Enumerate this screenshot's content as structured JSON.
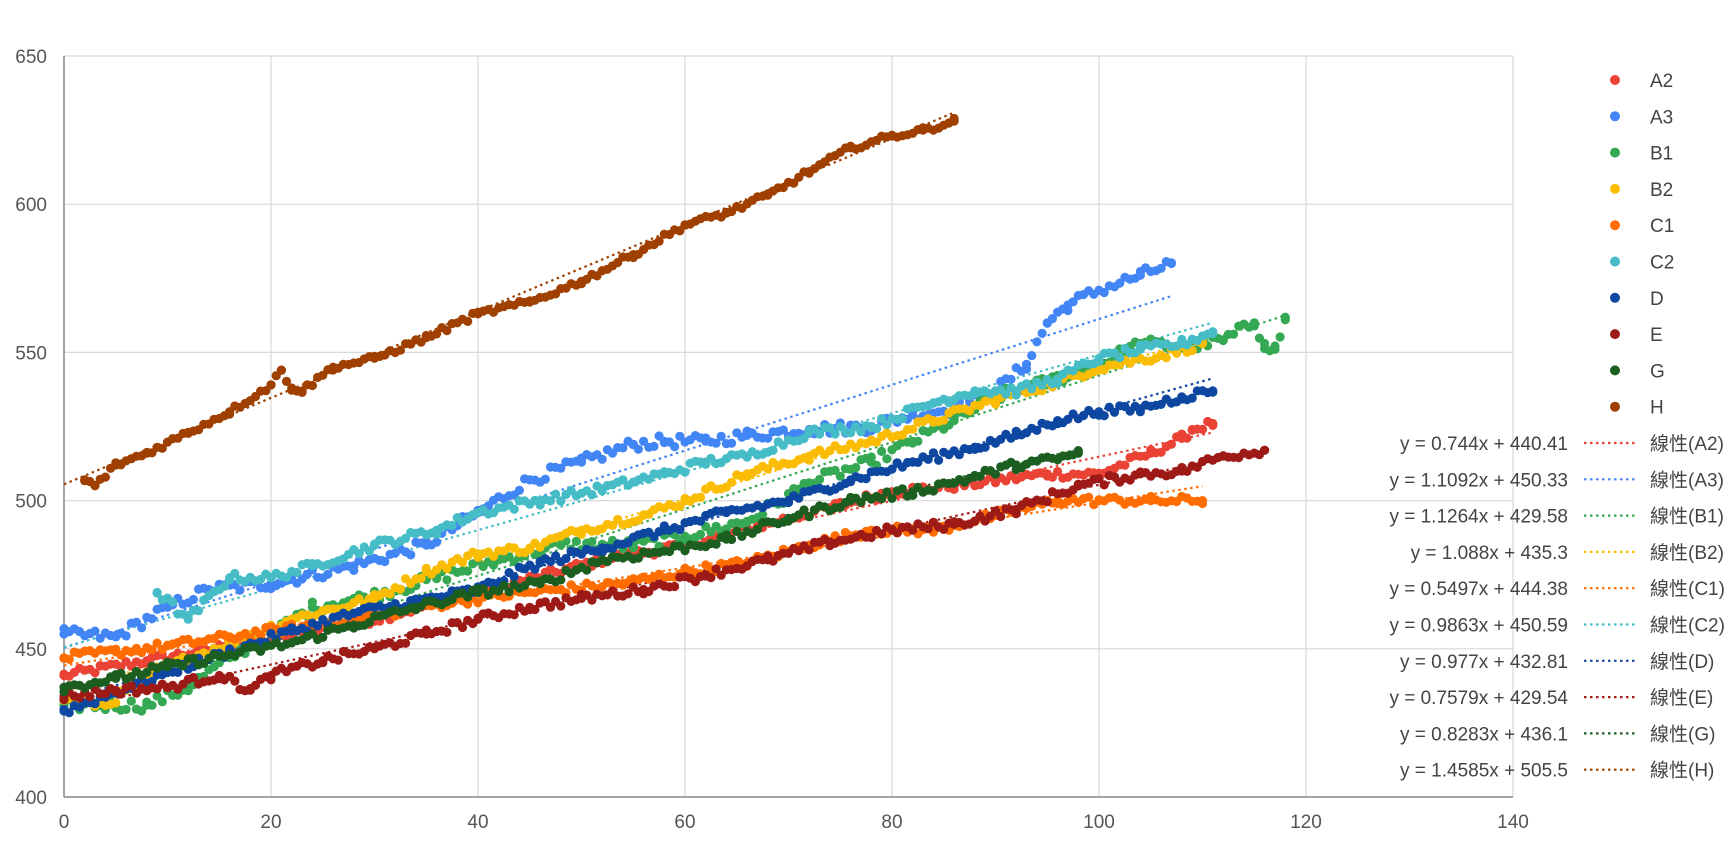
{
  "chart_data": {
    "type": "scatter",
    "title": "",
    "xlabel": "",
    "ylabel": "",
    "xlim": [
      0,
      140
    ],
    "ylim": [
      400,
      650
    ],
    "xticks": [
      0,
      20,
      40,
      60,
      80,
      100,
      120,
      140
    ],
    "yticks": [
      400,
      450,
      500,
      550,
      600,
      650
    ],
    "grid": true,
    "legend_position": "right",
    "series": [
      {
        "name": "A2",
        "color": "#EA4335",
        "x_max": 111,
        "slope": 0.744,
        "intercept": 440.41,
        "spread": 3,
        "trend_label": "線性(A2)",
        "equation": "y = 0.744x + 440.41",
        "points": [
          [
            0,
            441
          ],
          [
            8,
            446
          ],
          [
            18,
            452
          ],
          [
            30,
            460
          ],
          [
            40,
            469
          ],
          [
            52,
            480
          ],
          [
            60,
            485
          ],
          [
            70,
            494
          ],
          [
            80,
            503
          ],
          [
            86,
            505
          ],
          [
            95,
            509
          ],
          [
            100,
            509
          ],
          [
            105,
            516
          ],
          [
            108,
            521
          ],
          [
            109,
            524
          ],
          [
            111,
            526
          ]
        ]
      },
      {
        "name": "A3",
        "color": "#4285F4",
        "x_max": 107,
        "slope": 1.1092,
        "intercept": 450.33,
        "spread": 4,
        "trend_label": "線性(A3)",
        "equation": "y = 1.1092x + 450.33",
        "points": [
          [
            0,
            455
          ],
          [
            5,
            454
          ],
          [
            10,
            464
          ],
          [
            14,
            470
          ],
          [
            20,
            472
          ],
          [
            28,
            478
          ],
          [
            35,
            485
          ],
          [
            40,
            496
          ],
          [
            45,
            507
          ],
          [
            50,
            513
          ],
          [
            55,
            519
          ],
          [
            58,
            520
          ],
          [
            62,
            520
          ],
          [
            66,
            522
          ],
          [
            72,
            524
          ],
          [
            78,
            525
          ],
          [
            82,
            529
          ],
          [
            86,
            531
          ],
          [
            90,
            537
          ],
          [
            93,
            546
          ],
          [
            95,
            560
          ],
          [
            97,
            566
          ],
          [
            100,
            571
          ],
          [
            104,
            576
          ],
          [
            107,
            580
          ]
        ]
      },
      {
        "name": "B1",
        "color": "#34A853",
        "x_max": 118,
        "slope": 1.1264,
        "intercept": 429.58,
        "spread": 4,
        "trend_label": "線性(B1)",
        "equation": "y = 1.1264x + 429.58",
        "points": [
          [
            0,
            431
          ],
          [
            4,
            431
          ],
          [
            8,
            431
          ],
          [
            12,
            437
          ],
          [
            16,
            447
          ],
          [
            20,
            455
          ],
          [
            24,
            464
          ],
          [
            30,
            468
          ],
          [
            36,
            474
          ],
          [
            42,
            480
          ],
          [
            48,
            485
          ],
          [
            55,
            485
          ],
          [
            60,
            488
          ],
          [
            66,
            493
          ],
          [
            72,
            506
          ],
          [
            78,
            513
          ],
          [
            82,
            520
          ],
          [
            86,
            527
          ],
          [
            90,
            535
          ],
          [
            95,
            540
          ],
          [
            100,
            546
          ],
          [
            104,
            553
          ],
          [
            108,
            552
          ],
          [
            112,
            554
          ],
          [
            115,
            560
          ],
          [
            116,
            553
          ],
          [
            117,
            551
          ],
          [
            118,
            561
          ]
        ]
      },
      {
        "name": "B2",
        "color": "#FBBC04",
        "x_max": 111,
        "slope": 1.088,
        "intercept": 435.3,
        "spread": 3,
        "trend_label": "線性(B2)",
        "equation": "y = 1.088x + 435.3",
        "points": [
          [
            0,
            433
          ],
          [
            4,
            431
          ],
          [
            10,
            444
          ],
          [
            16,
            452
          ],
          [
            22,
            460
          ],
          [
            30,
            467
          ],
          [
            35,
            476
          ],
          [
            40,
            482
          ],
          [
            45,
            484
          ],
          [
            50,
            490
          ],
          [
            56,
            495
          ],
          [
            60,
            500
          ],
          [
            66,
            509
          ],
          [
            72,
            515
          ],
          [
            78,
            520
          ],
          [
            84,
            527
          ],
          [
            90,
            534
          ],
          [
            96,
            540
          ],
          [
            100,
            545
          ],
          [
            106,
            549
          ],
          [
            110,
            553
          ]
        ]
      },
      {
        "name": "C1",
        "color": "#FF6D01",
        "x_max": 110,
        "slope": 0.5497,
        "intercept": 444.38,
        "spread": 3,
        "trend_label": "線性(C1)",
        "equation": "y = 0.5497x + 444.38",
        "points": [
          [
            0,
            447
          ],
          [
            5,
            449
          ],
          [
            10,
            451
          ],
          [
            16,
            454
          ],
          [
            22,
            457
          ],
          [
            30,
            461
          ],
          [
            36,
            465
          ],
          [
            42,
            468
          ],
          [
            48,
            470
          ],
          [
            54,
            472
          ],
          [
            60,
            476
          ],
          [
            66,
            479
          ],
          [
            72,
            485
          ],
          [
            78,
            490
          ],
          [
            84,
            490
          ],
          [
            90,
            495
          ],
          [
            96,
            500
          ],
          [
            100,
            500
          ],
          [
            105,
            500
          ],
          [
            110,
            500
          ]
        ]
      },
      {
        "name": "C2",
        "color": "#46BDC6",
        "x_max": 111,
        "slope": 0.9863,
        "intercept": 450.59,
        "spread": 3,
        "trend_label": "線性(C2)",
        "equation": "y = 0.9863x + 450.59",
        "points": [
          [
            9,
            469
          ],
          [
            12,
            460
          ],
          [
            16,
            474
          ],
          [
            20,
            474
          ],
          [
            24,
            478
          ],
          [
            30,
            485
          ],
          [
            36,
            490
          ],
          [
            40,
            496
          ],
          [
            46,
            500
          ],
          [
            52,
            504
          ],
          [
            58,
            509
          ],
          [
            62,
            513
          ],
          [
            66,
            515
          ],
          [
            72,
            523
          ],
          [
            78,
            525
          ],
          [
            84,
            533
          ],
          [
            88,
            537
          ],
          [
            92,
            537
          ],
          [
            96,
            541
          ],
          [
            100,
            548
          ],
          [
            104,
            551
          ],
          [
            108,
            553
          ],
          [
            111,
            557
          ]
        ]
      },
      {
        "name": "D",
        "color": "#0D47A1",
        "x_max": 111,
        "slope": 0.977,
        "intercept": 432.81,
        "spread": 3,
        "trend_label": "線性(D)",
        "equation": "y = 0.977x + 432.81",
        "points": [
          [
            0,
            429
          ],
          [
            4,
            434
          ],
          [
            10,
            442
          ],
          [
            16,
            449
          ],
          [
            22,
            456
          ],
          [
            28,
            462
          ],
          [
            34,
            466
          ],
          [
            40,
            470
          ],
          [
            46,
            479
          ],
          [
            52,
            484
          ],
          [
            58,
            490
          ],
          [
            64,
            496
          ],
          [
            70,
            500
          ],
          [
            76,
            507
          ],
          [
            82,
            513
          ],
          [
            88,
            518
          ],
          [
            92,
            522
          ],
          [
            96,
            527
          ],
          [
            100,
            530
          ],
          [
            104,
            531
          ],
          [
            108,
            535
          ],
          [
            111,
            537
          ]
        ]
      },
      {
        "name": "E",
        "color": "#9E1A16",
        "x_max": 116,
        "slope": 0.7579,
        "intercept": 429.54,
        "spread": 3,
        "trend_label": "線性(E)",
        "equation": "y = 0.7579x + 429.54",
        "points": [
          [
            0,
            434
          ],
          [
            5,
            436
          ],
          [
            10,
            437
          ],
          [
            15,
            441
          ],
          [
            18,
            436
          ],
          [
            20,
            441
          ],
          [
            25,
            446
          ],
          [
            30,
            450
          ],
          [
            35,
            455
          ],
          [
            40,
            460
          ],
          [
            45,
            464
          ],
          [
            50,
            467
          ],
          [
            56,
            470
          ],
          [
            62,
            475
          ],
          [
            68,
            480
          ],
          [
            74,
            486
          ],
          [
            80,
            490
          ],
          [
            86,
            492
          ],
          [
            92,
            497
          ],
          [
            98,
            505
          ],
          [
            104,
            509
          ],
          [
            108,
            510
          ],
          [
            112,
            515
          ],
          [
            116,
            517
          ]
        ]
      },
      {
        "name": "G",
        "color": "#1B5E20",
        "x_max": 98,
        "slope": 0.8283,
        "intercept": 436.1,
        "spread": 3,
        "trend_label": "線性(G)",
        "equation": "y = 0.8283x + 436.1",
        "points": [
          [
            0,
            437
          ],
          [
            5,
            440
          ],
          [
            10,
            444
          ],
          [
            16,
            448
          ],
          [
            22,
            452
          ],
          [
            28,
            458
          ],
          [
            34,
            464
          ],
          [
            40,
            469
          ],
          [
            46,
            472
          ],
          [
            52,
            480
          ],
          [
            58,
            483
          ],
          [
            64,
            487
          ],
          [
            70,
            494
          ],
          [
            76,
            500
          ],
          [
            82,
            503
          ],
          [
            88,
            508
          ],
          [
            92,
            512
          ],
          [
            96,
            514
          ],
          [
            98,
            516
          ]
        ]
      },
      {
        "name": "H",
        "color": "#A04000",
        "x_max": 86,
        "slope": 1.4585,
        "intercept": 505.5,
        "spread": 2,
        "trend_label": "線性(H)",
        "equation": "y = 1.4585x + 505.5",
        "points": [
          [
            2,
            507
          ],
          [
            3,
            505
          ],
          [
            5,
            512
          ],
          [
            8,
            516
          ],
          [
            12,
            523
          ],
          [
            16,
            530
          ],
          [
            20,
            539
          ],
          [
            21,
            544
          ],
          [
            22,
            538
          ],
          [
            23,
            537
          ],
          [
            26,
            545
          ],
          [
            30,
            548
          ],
          [
            35,
            555
          ],
          [
            40,
            563
          ],
          [
            45,
            567
          ],
          [
            50,
            574
          ],
          [
            55,
            583
          ],
          [
            60,
            593
          ],
          [
            64,
            597
          ],
          [
            68,
            603
          ],
          [
            72,
            611
          ],
          [
            76,
            619
          ],
          [
            80,
            623
          ],
          [
            83,
            625
          ],
          [
            86,
            628
          ]
        ]
      }
    ]
  }
}
